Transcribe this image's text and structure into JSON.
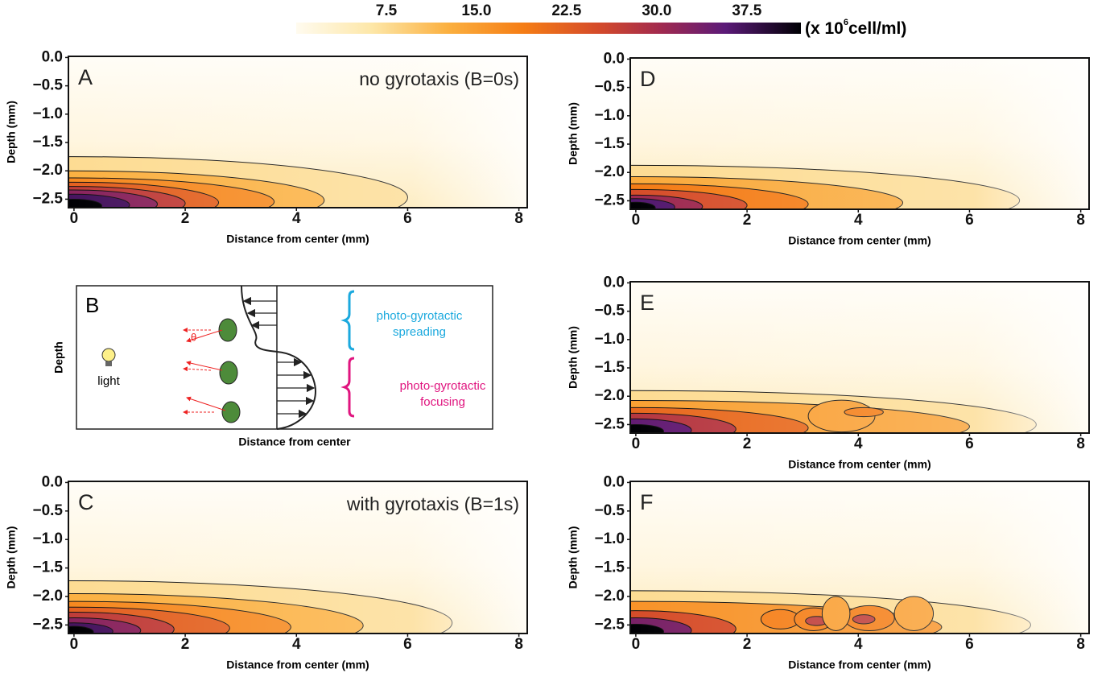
{
  "chart_data": {
    "type": "heatmap",
    "colorbar": {
      "clim": [
        0,
        42
      ],
      "ticks": [
        7.5,
        {
          "value": 15,
          "label": "15.0"
        },
        22.5,
        {
          "value": 30,
          "label": "30.0"
        },
        37.5
      ],
      "unit_prefix": "(x 10",
      "unit_exponent": "6",
      "unit_suffix": "cell/ml)"
    },
    "x_label": "Distance from center (mm)",
    "y_label": "Depth (mm)",
    "xlim": [
      -0.1,
      8.15
    ],
    "xticks": [
      0,
      2,
      4,
      6,
      8
    ],
    "ylim": [
      -2.65,
      0.02
    ],
    "yticks": [
      {
        "value": 0,
        "label": "0.0"
      },
      {
        "value": -0.5,
        "label": "−0.5"
      },
      {
        "value": -1,
        "label": "−1.0"
      },
      {
        "value": -1.5,
        "label": "−1.5"
      },
      {
        "value": -2,
        "label": "−2.0"
      },
      {
        "value": -2.5,
        "label": "−2.5"
      }
    ],
    "panels": [
      {
        "label": "A",
        "annotation": "no gyrotaxis (B=0s)"
      },
      {
        "label": "C",
        "annotation": "with gyrotaxis (B=1s)"
      },
      {
        "label": "D"
      },
      {
        "label": "E"
      },
      {
        "label": "F"
      }
    ]
  },
  "diagram": {
    "label": "B",
    "y_label": "Depth",
    "x_label": "Distance from center",
    "light": "light",
    "angle": "θ",
    "spreading": [
      "photo-gyrotactic",
      "spreading"
    ],
    "focusing": [
      "photo-gyrotactic",
      "focusing"
    ]
  }
}
